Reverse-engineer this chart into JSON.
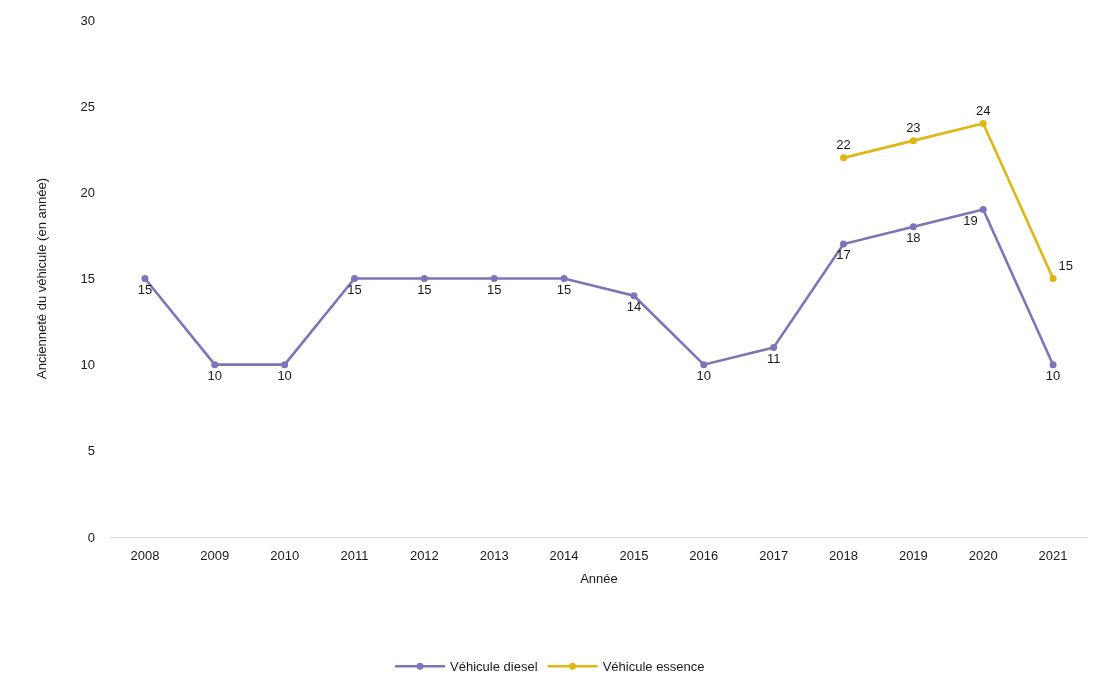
{
  "chart_data": {
    "type": "line",
    "xlabel": "Année",
    "ylabel": "Ancienneté du véhicule (en année)",
    "categories": [
      "2008",
      "2009",
      "2010",
      "2011",
      "2012",
      "2013",
      "2014",
      "2015",
      "2016",
      "2017",
      "2018",
      "2019",
      "2020",
      "2021"
    ],
    "series": [
      {
        "name": "Véhicule diesel",
        "color": "#7f74b8",
        "values": [
          15,
          10,
          10,
          15,
          15,
          15,
          15,
          14,
          10,
          11,
          17,
          18,
          19,
          10
        ]
      },
      {
        "name": "Véhicule essence",
        "color": "#e1b512",
        "values": [
          null,
          null,
          null,
          null,
          null,
          null,
          null,
          null,
          null,
          null,
          22,
          23,
          24,
          15
        ]
      }
    ],
    "ylim": [
      0,
      30
    ],
    "yticks": [
      0,
      5,
      10,
      15,
      20,
      25,
      30
    ],
    "data_labels": true,
    "marker": "circle",
    "line_style": "solid",
    "legend": "bottom"
  }
}
